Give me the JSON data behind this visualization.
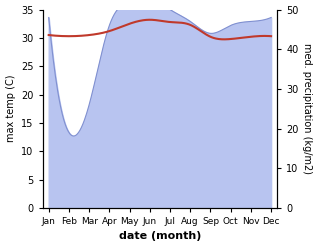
{
  "months": [
    "Jan",
    "Feb",
    "Mar",
    "Apr",
    "May",
    "Jun",
    "Jul",
    "Aug",
    "Sep",
    "Oct",
    "Nov",
    "Dec"
  ],
  "month_indices": [
    0,
    1,
    2,
    3,
    4,
    5,
    6,
    7,
    8,
    9,
    10,
    11
  ],
  "max_temp": [
    30.5,
    30.3,
    30.5,
    31.2,
    32.5,
    33.2,
    32.8,
    32.3,
    30.2,
    29.8,
    30.2,
    30.3
  ],
  "precipitation": [
    48,
    19,
    26,
    46,
    52,
    53,
    50,
    47,
    44,
    46,
    47,
    48
  ],
  "temp_color": "#c0392b",
  "precip_fill_color": "#b8c4f0",
  "precip_line_color": "#8090d0",
  "left_ylim": [
    0,
    35
  ],
  "right_ylim": [
    0,
    50
  ],
  "left_yticks": [
    0,
    5,
    10,
    15,
    20,
    25,
    30,
    35
  ],
  "right_yticks": [
    0,
    10,
    20,
    30,
    40,
    50
  ],
  "xlabel": "date (month)",
  "ylabel_left": "max temp (C)",
  "ylabel_right": "med. precipitation (kg/m2)",
  "figsize": [
    3.18,
    2.47
  ],
  "dpi": 100
}
